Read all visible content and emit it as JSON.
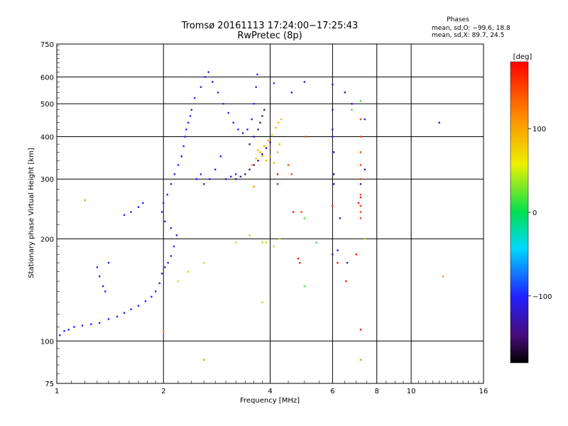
{
  "chart_data": {
    "type": "scatter",
    "title": "Tromsø 20161113 17:24:00−17:25:43",
    "subtitle": "RwPretec (8p)",
    "xlabel": "Frequency [MHz]",
    "ylabel": "Stationary phase Virtual Height [km]",
    "x_scale": "log",
    "y_scale": "log",
    "xlim": [
      1,
      16
    ],
    "ylim": [
      75,
      750
    ],
    "x_ticks": [
      1,
      2,
      4,
      6,
      8,
      10,
      16
    ],
    "y_ticks": [
      75,
      100,
      200,
      300,
      400,
      500,
      600,
      750
    ],
    "grid": true,
    "phase_stats": {
      "title": "Phases",
      "line_o": "mean, sd,O: −99.6, 18.8",
      "line_x": "mean, sd,X: 89.7, 24.5"
    },
    "colorbar": {
      "label": "[deg]",
      "range": [
        -180,
        180
      ],
      "ticks": [
        100,
        0,
        -100
      ],
      "tick_labels": [
        "100",
        "0",
        "−100"
      ]
    },
    "series": [
      {
        "mode": "O",
        "phase_deg": -100,
        "points": [
          [
            1.02,
            104
          ],
          [
            1.05,
            107
          ],
          [
            1.08,
            108
          ],
          [
            1.12,
            110
          ],
          [
            1.18,
            111
          ],
          [
            1.25,
            112
          ],
          [
            1.32,
            113
          ],
          [
            1.4,
            116
          ],
          [
            1.48,
            118
          ],
          [
            1.55,
            121
          ],
          [
            1.62,
            124
          ],
          [
            1.7,
            127
          ],
          [
            1.78,
            131
          ],
          [
            1.85,
            135
          ],
          [
            1.9,
            140
          ],
          [
            1.95,
            148
          ],
          [
            1.98,
            158
          ],
          [
            2.02,
            165
          ],
          [
            2.06,
            170
          ],
          [
            2.1,
            178
          ],
          [
            2.14,
            190
          ],
          [
            2.18,
            205
          ],
          [
            2.1,
            215
          ],
          [
            2.02,
            225
          ],
          [
            1.98,
            240
          ],
          [
            2.0,
            255
          ],
          [
            2.05,
            270
          ],
          [
            2.1,
            290
          ],
          [
            2.15,
            310
          ],
          [
            2.2,
            330
          ],
          [
            2.25,
            350
          ],
          [
            2.28,
            375
          ],
          [
            2.3,
            400
          ],
          [
            2.32,
            420
          ],
          [
            2.35,
            440
          ],
          [
            2.38,
            460
          ],
          [
            2.4,
            480
          ],
          [
            2.45,
            520
          ],
          [
            2.55,
            560
          ],
          [
            2.62,
            600
          ],
          [
            2.68,
            620
          ],
          [
            2.75,
            580
          ],
          [
            2.85,
            540
          ],
          [
            2.95,
            500
          ],
          [
            3.05,
            470
          ],
          [
            3.15,
            440
          ],
          [
            3.25,
            420
          ],
          [
            3.35,
            410
          ],
          [
            3.45,
            420
          ],
          [
            3.55,
            450
          ],
          [
            3.6,
            500
          ],
          [
            3.65,
            560
          ],
          [
            3.68,
            610
          ],
          [
            1.3,
            165
          ],
          [
            1.32,
            155
          ],
          [
            1.35,
            145
          ],
          [
            1.37,
            140
          ],
          [
            1.4,
            170
          ],
          [
            1.55,
            235
          ],
          [
            1.62,
            240
          ],
          [
            1.7,
            248
          ],
          [
            1.75,
            255
          ],
          [
            2.48,
            300
          ],
          [
            2.55,
            310
          ],
          [
            2.6,
            290
          ],
          [
            2.7,
            300
          ],
          [
            2.8,
            320
          ],
          [
            2.9,
            350
          ],
          [
            3.0,
            300
          ],
          [
            3.1,
            305
          ],
          [
            3.2,
            310
          ],
          [
            4.1,
            575
          ],
          [
            4.6,
            540
          ]
        ]
      },
      {
        "mode": "X",
        "phase_deg": 95,
        "points": [
          [
            3.55,
            330
          ],
          [
            3.65,
            345
          ],
          [
            3.75,
            360
          ],
          [
            3.85,
            375
          ],
          [
            3.95,
            390
          ],
          [
            4.05,
            405
          ],
          [
            4.15,
            425
          ],
          [
            4.22,
            440
          ],
          [
            4.3,
            450
          ],
          [
            3.9,
            340
          ],
          [
            4.0,
            350
          ],
          [
            4.1,
            335
          ],
          [
            4.2,
            360
          ],
          [
            4.25,
            380
          ],
          [
            3.8,
            350
          ],
          [
            3.7,
            365
          ]
        ]
      },
      {
        "mode": "X",
        "phase_deg": -140,
        "points": [
          [
            3.2,
            300
          ],
          [
            3.3,
            305
          ],
          [
            3.4,
            310
          ],
          [
            3.5,
            320
          ],
          [
            3.6,
            330
          ],
          [
            3.7,
            340
          ],
          [
            3.8,
            355
          ],
          [
            3.9,
            370
          ],
          [
            4.0,
            385
          ],
          [
            3.5,
            380
          ],
          [
            3.6,
            400
          ],
          [
            3.7,
            420
          ],
          [
            3.75,
            440
          ],
          [
            3.8,
            460
          ],
          [
            3.85,
            480
          ]
        ]
      },
      {
        "mode": "X",
        "phase_deg": 150,
        "points": [
          [
            7.2,
            450
          ],
          [
            7.2,
            400
          ],
          [
            7.2,
            360
          ],
          [
            7.2,
            330
          ],
          [
            7.2,
            300
          ],
          [
            7.2,
            270
          ],
          [
            7.2,
            250
          ],
          [
            7.2,
            240
          ],
          [
            7.2,
            230
          ],
          [
            4.5,
            330
          ],
          [
            4.6,
            310
          ],
          [
            4.9,
            240
          ],
          [
            5.05,
            400
          ],
          [
            6.0,
            250
          ]
        ]
      },
      {
        "mode": "X",
        "phase_deg": 40,
        "points": [
          [
            2.6,
            170
          ],
          [
            3.2,
            195
          ],
          [
            3.5,
            205
          ],
          [
            3.8,
            195
          ],
          [
            3.9,
            195
          ],
          [
            4.1,
            190
          ],
          [
            4.25,
            200
          ],
          [
            2.35,
            160
          ],
          [
            2.2,
            150
          ],
          [
            7.4,
            200
          ],
          [
            3.8,
            130
          ]
        ]
      },
      {
        "mode": "O",
        "phase_deg": 15,
        "points": [
          [
            5.0,
            230
          ],
          [
            5.4,
            195
          ],
          [
            6.8,
            480
          ],
          [
            7.2,
            510
          ],
          [
            5.0,
            145
          ]
        ]
      },
      {
        "mode": "O",
        "phase_deg": -115,
        "points": [
          [
            6.0,
            570
          ],
          [
            6.0,
            480
          ],
          [
            6.0,
            420
          ],
          [
            6.0,
            400
          ],
          [
            6.05,
            360
          ],
          [
            6.05,
            310
          ],
          [
            6.05,
            290
          ],
          [
            6.5,
            540
          ],
          [
            6.8,
            500
          ],
          [
            7.2,
            290
          ],
          [
            7.4,
            450
          ],
          [
            7.4,
            320
          ],
          [
            6.3,
            230
          ],
          [
            6.2,
            185
          ],
          [
            6.0,
            180
          ],
          [
            6.6,
            170
          ],
          [
            12.0,
            440
          ],
          [
            5.0,
            580
          ]
        ]
      },
      {
        "mode": "X",
        "phase_deg": 110,
        "points": [
          [
            1.2,
            260
          ],
          [
            2.6,
            88
          ],
          [
            7.2,
            88
          ],
          [
            2.0,
            107
          ],
          [
            12.3,
            155
          ],
          [
            3.6,
            285
          ]
        ]
      },
      {
        "mode": "X",
        "phase_deg": 170,
        "points": [
          [
            4.8,
            175
          ],
          [
            4.85,
            170
          ],
          [
            7.2,
            108
          ],
          [
            6.55,
            150
          ],
          [
            6.2,
            170
          ],
          [
            4.2,
            290
          ],
          [
            4.2,
            310
          ],
          [
            4.65,
            240
          ],
          [
            7.0,
            180
          ],
          [
            7.2,
            265
          ],
          [
            7.1,
            255
          ]
        ]
      }
    ]
  }
}
